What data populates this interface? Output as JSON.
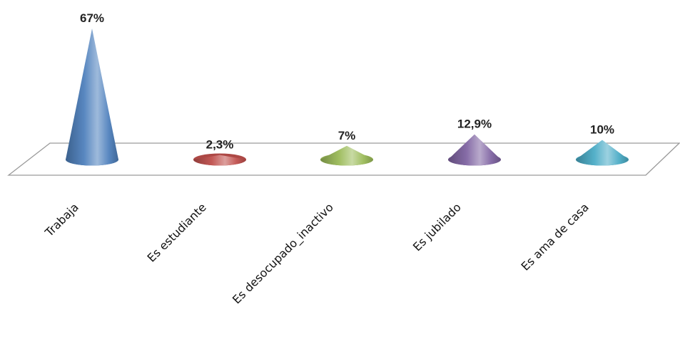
{
  "chart_data": {
    "type": "bar",
    "shape": "cone-3d",
    "categories": [
      "Trabaja",
      "Es estudiante",
      "Es desocupado_inactivo",
      "Es jubilado",
      "Es ama de casa"
    ],
    "values": [
      67,
      2.3,
      7,
      12.9,
      10
    ],
    "data_labels": [
      "67%",
      "2,3%",
      "7%",
      "12,9%",
      "10%"
    ],
    "ylim": [
      0,
      67
    ],
    "grid": false,
    "legend": "none",
    "colors": [
      "#4f81bd",
      "#c0504d",
      "#9bbb59",
      "#8064a2",
      "#4bacc6"
    ],
    "title": "",
    "xlabel": "",
    "ylabel": ""
  }
}
